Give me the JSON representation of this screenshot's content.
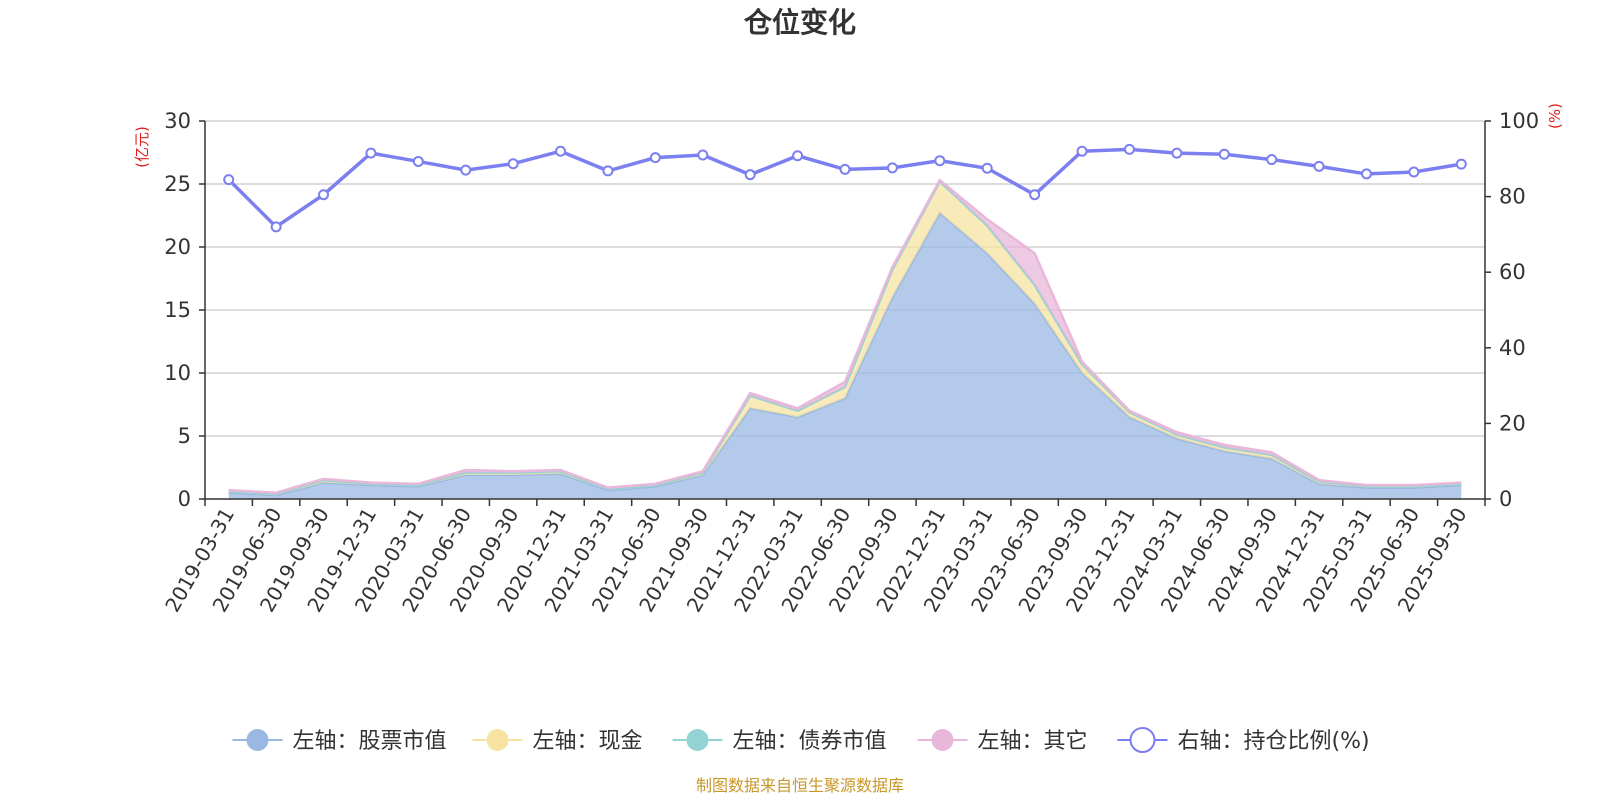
{
  "chart_data": {
    "type": "area",
    "title": "仓位变化",
    "y_left_unit": "(亿元)",
    "y_right_unit": "(%)",
    "y_left_range": [
      0,
      30
    ],
    "y_left_ticks": [
      "0",
      "5",
      "10",
      "15",
      "20",
      "25",
      "30"
    ],
    "y_right_range": [
      0,
      100
    ],
    "y_right_ticks": [
      "0",
      "20",
      "40",
      "60",
      "80",
      "100"
    ],
    "categories": [
      "2019-03-31",
      "2019-06-30",
      "2019-09-30",
      "2019-12-31",
      "2020-03-31",
      "2020-06-30",
      "2020-09-30",
      "2020-12-31",
      "2021-03-31",
      "2021-06-30",
      "2021-09-30",
      "2021-12-31",
      "2022-03-31",
      "2022-06-30",
      "2022-09-30",
      "2022-12-31",
      "2023-03-31",
      "2023-06-30",
      "2023-09-30",
      "2023-12-31",
      "2024-03-31",
      "2024-06-30",
      "2024-09-30",
      "2024-12-31",
      "2025-03-31",
      "2025-06-30",
      "2025-09-30"
    ],
    "series": [
      {
        "name": "左轴：股票市值",
        "axis": "left",
        "stack": true,
        "color": "#9bb8e3",
        "values": [
          0.5,
          0.3,
          1.3,
          1.1,
          1.0,
          1.9,
          1.9,
          2.0,
          0.7,
          1.0,
          1.9,
          7.2,
          6.5,
          8.0,
          16.0,
          22.7,
          19.5,
          15.5,
          10.0,
          6.5,
          4.8,
          3.8,
          3.2,
          1.2,
          0.9,
          0.9,
          1.1
        ]
      },
      {
        "name": "左轴：现金",
        "axis": "left",
        "stack": true,
        "color": "#f7e3a1",
        "values": [
          0.1,
          0.1,
          0.2,
          0.1,
          0.1,
          0.2,
          0.2,
          0.2,
          0.1,
          0.1,
          0.2,
          1.0,
          0.5,
          0.9,
          2.2,
          2.5,
          2.2,
          1.5,
          0.7,
          0.4,
          0.3,
          0.3,
          0.3,
          0.2,
          0.1,
          0.1,
          0.1
        ]
      },
      {
        "name": "左轴：债券市值",
        "axis": "left",
        "stack": true,
        "color": "#94d3d3",
        "values": [
          0,
          0,
          0,
          0,
          0,
          0,
          0,
          0,
          0,
          0,
          0,
          0,
          0,
          0,
          0,
          0,
          0,
          0,
          0,
          0,
          0,
          0,
          0,
          0,
          0,
          0,
          0
        ]
      },
      {
        "name": "左轴：其它",
        "axis": "left",
        "stack": true,
        "color": "#e8b7d9",
        "values": [
          0.1,
          0.1,
          0.1,
          0.1,
          0.1,
          0.2,
          0.1,
          0.1,
          0.1,
          0.1,
          0.1,
          0.2,
          0.2,
          0.4,
          0.2,
          0.1,
          0.5,
          2.5,
          0.2,
          0.1,
          0.2,
          0.2,
          0.2,
          0.1,
          0.1,
          0.1,
          0.1
        ]
      },
      {
        "name": "右轴：持仓比例(%)",
        "axis": "right",
        "type": "line",
        "color": "#7b7ff0",
        "values": [
          84.5,
          72.0,
          80.5,
          91.5,
          89.3,
          87.0,
          88.7,
          92.0,
          86.8,
          90.3,
          91.0,
          85.8,
          90.8,
          87.2,
          87.6,
          89.5,
          87.5,
          80.5,
          92.0,
          92.5,
          91.5,
          91.2,
          89.8,
          88.0,
          86.0,
          86.5,
          88.6
        ]
      }
    ],
    "legend_position": "bottom",
    "source_text": "制图数据来自恒生聚源数据库"
  }
}
